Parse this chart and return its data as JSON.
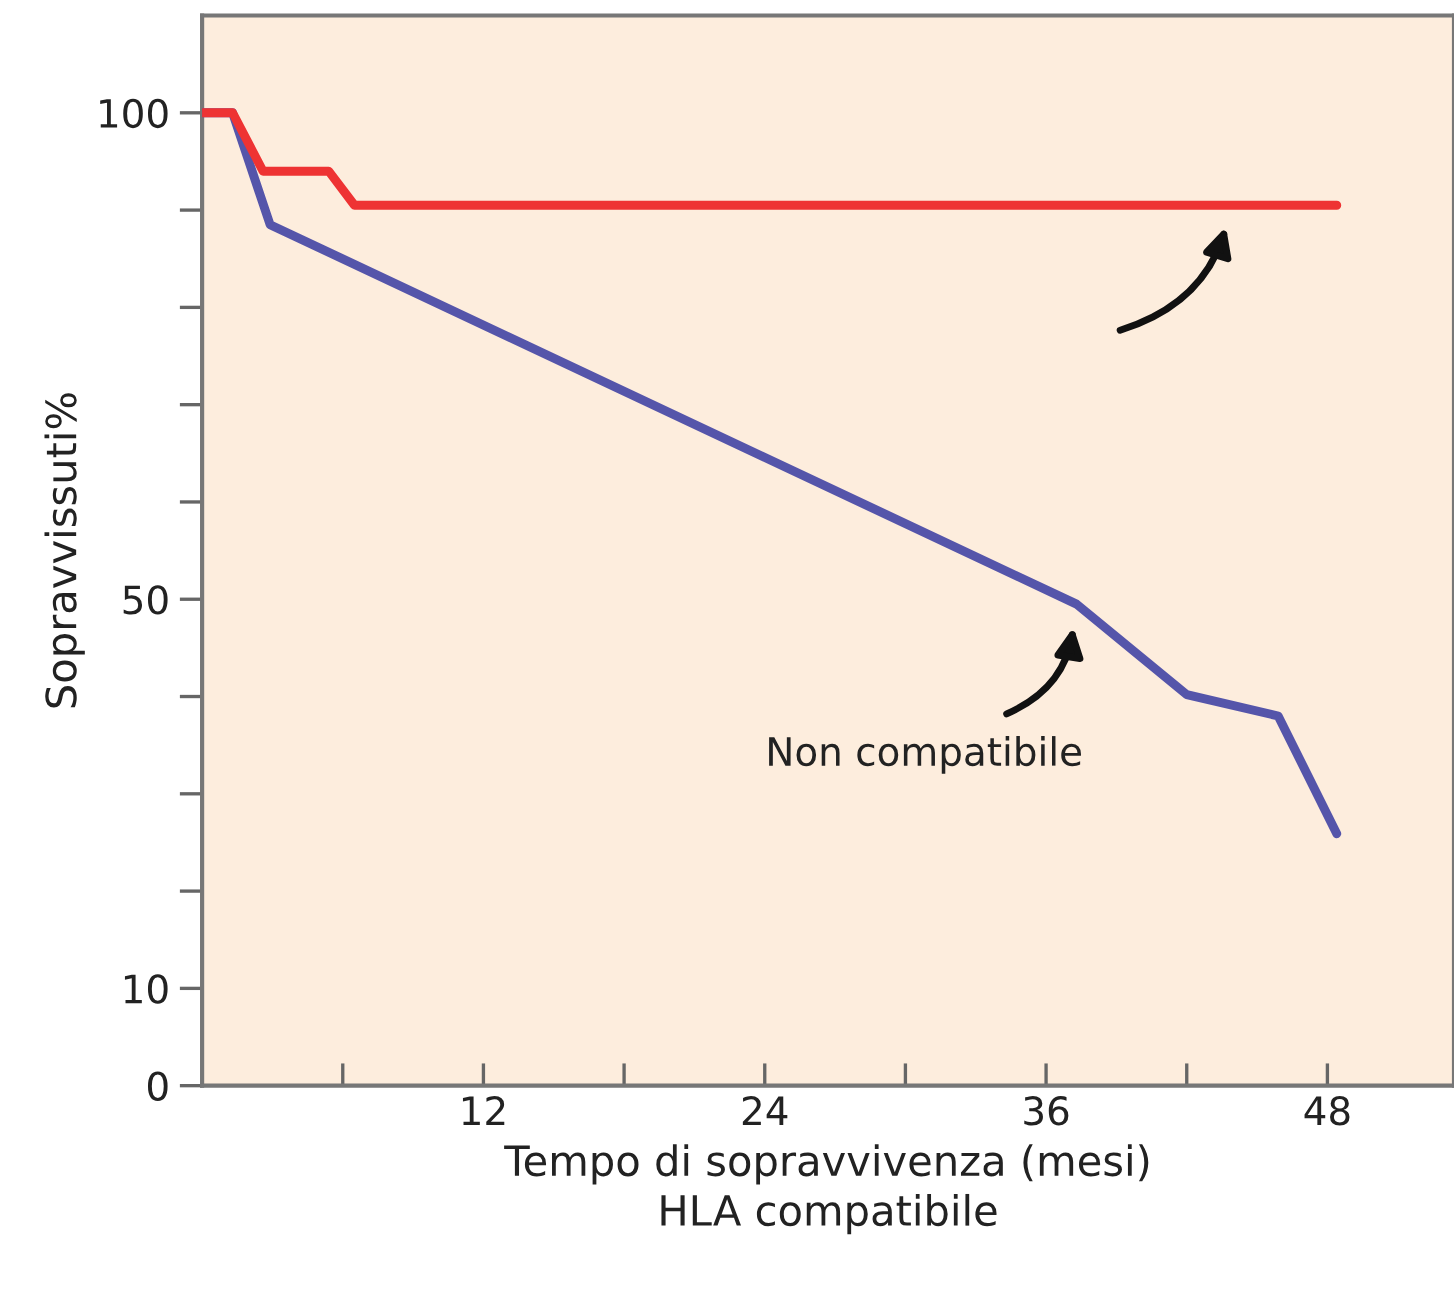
{
  "chart_data": {
    "type": "line",
    "xlabel": "Tempo di sopravvivenza (mesi)\nHLA compatibile",
    "ylabel": "Sopravvissuti%",
    "xlim": [
      0,
      53.4
    ],
    "ylim": [
      0,
      110
    ],
    "xticks": [
      {
        "value": 6,
        "label": null
      },
      12,
      {
        "value": 18,
        "label": null
      },
      24,
      {
        "value": 30,
        "label": null
      },
      36,
      {
        "value": 42,
        "label": null
      },
      48
    ],
    "yticks": [
      0,
      10,
      {
        "value": 20,
        "label": null
      },
      {
        "value": 30,
        "label": null
      },
      {
        "value": 40,
        "label": null
      },
      50,
      {
        "value": 60,
        "label": null
      },
      {
        "value": 70,
        "label": null
      },
      {
        "value": 80,
        "label": null
      },
      {
        "value": 90,
        "label": null
      },
      100
    ],
    "grid": false,
    "legend": false,
    "marker": "none",
    "line_style": "solid",
    "series": [
      {
        "color": "#ee3333",
        "x": [
          0,
          1.3,
          2.6,
          5.4,
          6.5,
          48.4
        ],
        "values": [
          100,
          100,
          94,
          94,
          90.5,
          90.5
        ]
      },
      {
        "name": "Non compatibile",
        "color": "#5555aa",
        "x": [
          0,
          1.3,
          2.9,
          37.3,
          42.0,
          45.9,
          48.4
        ],
        "values": [
          100,
          100,
          88.5,
          49.5,
          40.2,
          38,
          25.9
        ]
      }
    ]
  }
}
